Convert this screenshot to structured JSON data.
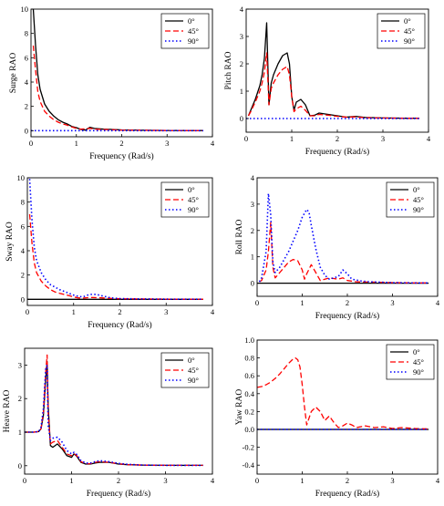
{
  "xlabel_common": "Frequency (Rad/s)",
  "legend_labels": [
    "0°",
    "45°",
    "90°"
  ],
  "series_colors": [
    "#000000",
    "#ff0000",
    "#0000ff"
  ],
  "chart_data": [
    {
      "type": "line",
      "ylabel": "Surge RAO",
      "xlabel": "Frequency (Rad/s)",
      "xlim": [
        0,
        4
      ],
      "ylim": [
        -0.5,
        10
      ],
      "xticks": [
        0,
        1,
        2,
        3,
        4
      ],
      "yticks": [
        0,
        2,
        4,
        6,
        8,
        10
      ],
      "legend": "top-right",
      "series": [
        {
          "name": "0°",
          "x": [
            0.05,
            0.1,
            0.15,
            0.2,
            0.3,
            0.4,
            0.5,
            0.6,
            0.7,
            0.8,
            0.9,
            1.0,
            1.1,
            1.2,
            1.3,
            1.4,
            1.6,
            1.8,
            2.0,
            2.5,
            3.0,
            3.5,
            3.8
          ],
          "y": [
            10,
            7.0,
            4.6,
            3.4,
            2.2,
            1.6,
            1.2,
            0.9,
            0.7,
            0.55,
            0.35,
            0.25,
            0.1,
            0.05,
            0.28,
            0.18,
            0.12,
            0.1,
            0.06,
            0.03,
            0.02,
            0.01,
            0.01
          ]
        },
        {
          "name": "45°",
          "x": [
            0.05,
            0.1,
            0.15,
            0.2,
            0.3,
            0.4,
            0.5,
            0.6,
            0.7,
            0.8,
            0.9,
            1.0,
            1.1,
            1.2,
            1.3,
            1.4,
            1.6,
            1.8,
            2.0,
            2.5,
            3.0,
            3.5,
            3.8
          ],
          "y": [
            7.0,
            5.0,
            3.2,
            2.4,
            1.6,
            1.2,
            0.9,
            0.7,
            0.55,
            0.45,
            0.3,
            0.2,
            0.12,
            0.15,
            0.2,
            0.12,
            0.1,
            0.08,
            0.05,
            0.03,
            0.02,
            0.01,
            0.01
          ]
        },
        {
          "name": "90°",
          "x": [
            0.0,
            1.0,
            2.0,
            3.0,
            3.8
          ],
          "y": [
            0,
            0,
            0,
            0,
            0
          ]
        }
      ]
    },
    {
      "type": "line",
      "ylabel": "Pitch RAO",
      "xlabel": "Frequency (Rad/s)",
      "xlim": [
        0,
        4
      ],
      "ylim": [
        -0.5,
        4
      ],
      "xticks": [
        0,
        1,
        2,
        3,
        4
      ],
      "yticks": [
        0,
        1,
        2,
        3,
        4
      ],
      "legend": "top-right",
      "series": [
        {
          "name": "0°",
          "x": [
            0.05,
            0.1,
            0.2,
            0.3,
            0.35,
            0.4,
            0.45,
            0.5,
            0.55,
            0.6,
            0.7,
            0.8,
            0.9,
            0.95,
            1.0,
            1.05,
            1.1,
            1.2,
            1.3,
            1.4,
            1.5,
            1.6,
            1.8,
            2.0,
            2.2,
            2.4,
            2.6,
            3.0,
            3.5,
            3.8
          ],
          "y": [
            0.1,
            0.3,
            0.7,
            1.2,
            1.6,
            2.2,
            3.5,
            0.5,
            1.3,
            1.6,
            2.0,
            2.3,
            2.4,
            2.0,
            0.8,
            0.3,
            0.6,
            0.7,
            0.5,
            0.1,
            0.12,
            0.2,
            0.15,
            0.1,
            0.05,
            0.08,
            0.04,
            0.02,
            0.01,
            0.01
          ]
        },
        {
          "name": "45°",
          "x": [
            0.05,
            0.1,
            0.2,
            0.3,
            0.35,
            0.4,
            0.45,
            0.5,
            0.55,
            0.6,
            0.7,
            0.8,
            0.9,
            0.95,
            1.0,
            1.05,
            1.1,
            1.2,
            1.3,
            1.4,
            1.5,
            1.6,
            1.8,
            2.0,
            2.2,
            2.4,
            2.6,
            3.0,
            3.5,
            3.8
          ],
          "y": [
            0.1,
            0.25,
            0.6,
            1.0,
            1.3,
            1.7,
            2.4,
            0.5,
            1.1,
            1.3,
            1.6,
            1.8,
            1.9,
            1.6,
            0.8,
            0.25,
            0.35,
            0.45,
            0.3,
            0.1,
            0.1,
            0.15,
            0.12,
            0.08,
            0.05,
            0.06,
            0.03,
            0.02,
            0.01,
            0.01
          ]
        },
        {
          "name": "90°",
          "x": [
            0.0,
            1.0,
            2.0,
            3.0,
            3.8
          ],
          "y": [
            0,
            0,
            0,
            0,
            0
          ]
        }
      ]
    },
    {
      "type": "line",
      "ylabel": "Sway RAO",
      "xlabel": "Frequency (Rad/s)",
      "xlim": [
        0,
        4
      ],
      "ylim": [
        -0.5,
        10
      ],
      "xticks": [
        0,
        1,
        2,
        3,
        4
      ],
      "yticks": [
        0,
        2,
        4,
        6,
        8,
        10
      ],
      "legend": "top-right",
      "series": [
        {
          "name": "0°",
          "x": [
            0.0,
            1.0,
            2.0,
            3.0,
            3.8
          ],
          "y": [
            0,
            0,
            0,
            0,
            0
          ]
        },
        {
          "name": "45°",
          "x": [
            0.05,
            0.1,
            0.15,
            0.2,
            0.3,
            0.4,
            0.5,
            0.6,
            0.7,
            0.8,
            0.9,
            1.0,
            1.1,
            1.2,
            1.3,
            1.4,
            1.6,
            1.8,
            2.0,
            2.5,
            3.0,
            3.5,
            3.8
          ],
          "y": [
            7.0,
            4.6,
            3.0,
            2.2,
            1.5,
            1.1,
            0.8,
            0.6,
            0.5,
            0.4,
            0.3,
            0.2,
            0.12,
            0.1,
            0.14,
            0.15,
            0.12,
            0.08,
            0.05,
            0.03,
            0.02,
            0.01,
            0.01
          ]
        },
        {
          "name": "90°",
          "x": [
            0.05,
            0.1,
            0.15,
            0.2,
            0.3,
            0.4,
            0.5,
            0.6,
            0.7,
            0.8,
            0.9,
            1.0,
            1.1,
            1.2,
            1.3,
            1.4,
            1.5,
            1.6,
            1.8,
            2.0,
            2.5,
            3.0,
            3.5,
            3.8
          ],
          "y": [
            9.9,
            6.5,
            4.3,
            3.2,
            2.2,
            1.6,
            1.2,
            1.0,
            0.8,
            0.65,
            0.5,
            0.35,
            0.25,
            0.2,
            0.35,
            0.42,
            0.4,
            0.3,
            0.12,
            0.06,
            0.03,
            0.02,
            0.01,
            0.01
          ]
        }
      ]
    },
    {
      "type": "line",
      "ylabel": "Roll RAO",
      "xlabel": "Frequency (Rad/s)",
      "xlim": [
        0,
        4
      ],
      "ylim": [
        -0.5,
        4
      ],
      "xticks": [
        0,
        1,
        2,
        3,
        4
      ],
      "yticks": [
        0,
        1,
        2,
        3,
        4
      ],
      "legend": "top-right",
      "series": [
        {
          "name": "0°",
          "x": [
            0.0,
            1.0,
            2.0,
            3.0,
            3.8
          ],
          "y": [
            0,
            0,
            0,
            0,
            0
          ]
        },
        {
          "name": "45°",
          "x": [
            0.05,
            0.1,
            0.2,
            0.25,
            0.3,
            0.35,
            0.4,
            0.5,
            0.6,
            0.7,
            0.8,
            0.9,
            1.0,
            1.05,
            1.1,
            1.2,
            1.3,
            1.4,
            1.5,
            1.6,
            1.8,
            1.9,
            2.0,
            2.2,
            2.5,
            3.0,
            3.5,
            3.8
          ],
          "y": [
            0.05,
            0.1,
            0.5,
            1.2,
            2.3,
            0.6,
            0.2,
            0.4,
            0.6,
            0.8,
            0.9,
            0.85,
            0.5,
            0.15,
            0.35,
            0.7,
            0.4,
            0.1,
            0.15,
            0.2,
            0.15,
            0.2,
            0.1,
            0.05,
            0.04,
            0.02,
            0.01,
            0.01
          ]
        },
        {
          "name": "90°",
          "x": [
            0.05,
            0.1,
            0.2,
            0.25,
            0.3,
            0.35,
            0.4,
            0.5,
            0.6,
            0.7,
            0.8,
            0.9,
            1.0,
            1.1,
            1.15,
            1.2,
            1.3,
            1.4,
            1.5,
            1.6,
            1.8,
            1.9,
            2.0,
            2.1,
            2.3,
            2.5,
            3.0,
            3.5,
            3.8
          ],
          "y": [
            0.05,
            0.2,
            1.2,
            3.4,
            2.6,
            0.8,
            0.4,
            0.6,
            0.9,
            1.2,
            1.6,
            2.0,
            2.5,
            2.8,
            2.7,
            2.2,
            1.3,
            0.6,
            0.3,
            0.15,
            0.25,
            0.5,
            0.35,
            0.15,
            0.08,
            0.05,
            0.02,
            0.01,
            0.01
          ]
        }
      ]
    },
    {
      "type": "line",
      "ylabel": "Heave RAO",
      "xlabel": "Frequency (Rad/s)",
      "xlim": [
        0,
        4
      ],
      "ylim": [
        -0.25,
        3.5
      ],
      "xticks": [
        0,
        1,
        2,
        3,
        4
      ],
      "yticks": [
        0,
        1,
        2,
        3
      ],
      "legend": "top-right",
      "series": [
        {
          "name": "0°",
          "x": [
            0.0,
            0.2,
            0.3,
            0.35,
            0.4,
            0.45,
            0.48,
            0.5,
            0.55,
            0.6,
            0.7,
            0.8,
            0.9,
            1.0,
            1.05,
            1.1,
            1.2,
            1.3,
            1.4,
            1.5,
            1.6,
            1.8,
            2.0,
            2.2,
            2.5,
            3.0,
            3.5,
            3.8
          ],
          "y": [
            1.0,
            1.0,
            1.02,
            1.1,
            1.5,
            2.6,
            3.1,
            1.8,
            0.6,
            0.55,
            0.65,
            0.5,
            0.3,
            0.25,
            0.35,
            0.3,
            0.1,
            0.05,
            0.05,
            0.08,
            0.1,
            0.1,
            0.05,
            0.03,
            0.02,
            0.01,
            0.01,
            0.01
          ]
        },
        {
          "name": "45°",
          "x": [
            0.0,
            0.2,
            0.3,
            0.35,
            0.4,
            0.45,
            0.48,
            0.5,
            0.55,
            0.6,
            0.7,
            0.8,
            0.9,
            1.0,
            1.05,
            1.1,
            1.2,
            1.3,
            1.4,
            1.5,
            1.6,
            1.8,
            2.0,
            2.2,
            2.5,
            3.0,
            3.5,
            3.8
          ],
          "y": [
            1.0,
            1.0,
            1.02,
            1.1,
            1.6,
            2.8,
            3.3,
            1.6,
            0.65,
            0.7,
            0.75,
            0.55,
            0.35,
            0.3,
            0.35,
            0.32,
            0.12,
            0.06,
            0.06,
            0.1,
            0.12,
            0.1,
            0.06,
            0.03,
            0.02,
            0.01,
            0.01,
            0.01
          ]
        },
        {
          "name": "90°",
          "x": [
            0.0,
            0.2,
            0.3,
            0.35,
            0.4,
            0.45,
            0.48,
            0.5,
            0.55,
            0.6,
            0.7,
            0.8,
            0.9,
            1.0,
            1.05,
            1.1,
            1.2,
            1.3,
            1.4,
            1.5,
            1.6,
            1.8,
            2.0,
            2.2,
            2.5,
            3.0,
            3.5,
            3.8
          ],
          "y": [
            1.0,
            1.0,
            1.02,
            1.15,
            1.7,
            2.9,
            3.0,
            1.2,
            0.75,
            0.82,
            0.85,
            0.7,
            0.45,
            0.35,
            0.4,
            0.35,
            0.15,
            0.08,
            0.08,
            0.12,
            0.15,
            0.12,
            0.07,
            0.04,
            0.02,
            0.01,
            0.01,
            0.01
          ]
        }
      ]
    },
    {
      "type": "line",
      "ylabel": "Yaw RAO",
      "xlabel": "Frequency (Rad/s)",
      "xlim": [
        0,
        4
      ],
      "ylim": [
        -0.5,
        1.0
      ],
      "xticks": [
        0,
        1,
        2,
        3,
        4
      ],
      "yticks": [
        -0.4,
        -0.2,
        0.0,
        0.2,
        0.4,
        0.6,
        0.8,
        1.0
      ],
      "legend": "top-right",
      "series": [
        {
          "name": "0°",
          "x": [
            0.0,
            1.0,
            2.0,
            3.0,
            3.8
          ],
          "y": [
            0,
            0,
            0,
            0,
            0
          ]
        },
        {
          "name": "45°",
          "x": [
            0.0,
            0.1,
            0.2,
            0.3,
            0.4,
            0.5,
            0.6,
            0.7,
            0.8,
            0.85,
            0.9,
            0.95,
            1.0,
            1.05,
            1.1,
            1.2,
            1.3,
            1.4,
            1.5,
            1.6,
            1.7,
            1.8,
            1.9,
            2.0,
            2.1,
            2.2,
            2.4,
            2.6,
            2.8,
            3.0,
            3.2,
            3.5,
            3.8
          ],
          "y": [
            0.47,
            0.48,
            0.5,
            0.53,
            0.57,
            0.62,
            0.68,
            0.74,
            0.79,
            0.8,
            0.78,
            0.7,
            0.5,
            0.25,
            0.05,
            0.2,
            0.25,
            0.2,
            0.1,
            0.15,
            0.08,
            0.02,
            0.04,
            0.07,
            0.05,
            0.02,
            0.04,
            0.02,
            0.03,
            0.01,
            0.02,
            0.01,
            0.005
          ]
        },
        {
          "name": "90°",
          "x": [
            0.0,
            1.0,
            2.0,
            3.0,
            3.8
          ],
          "y": [
            0,
            0,
            0,
            0,
            0
          ]
        }
      ]
    }
  ]
}
